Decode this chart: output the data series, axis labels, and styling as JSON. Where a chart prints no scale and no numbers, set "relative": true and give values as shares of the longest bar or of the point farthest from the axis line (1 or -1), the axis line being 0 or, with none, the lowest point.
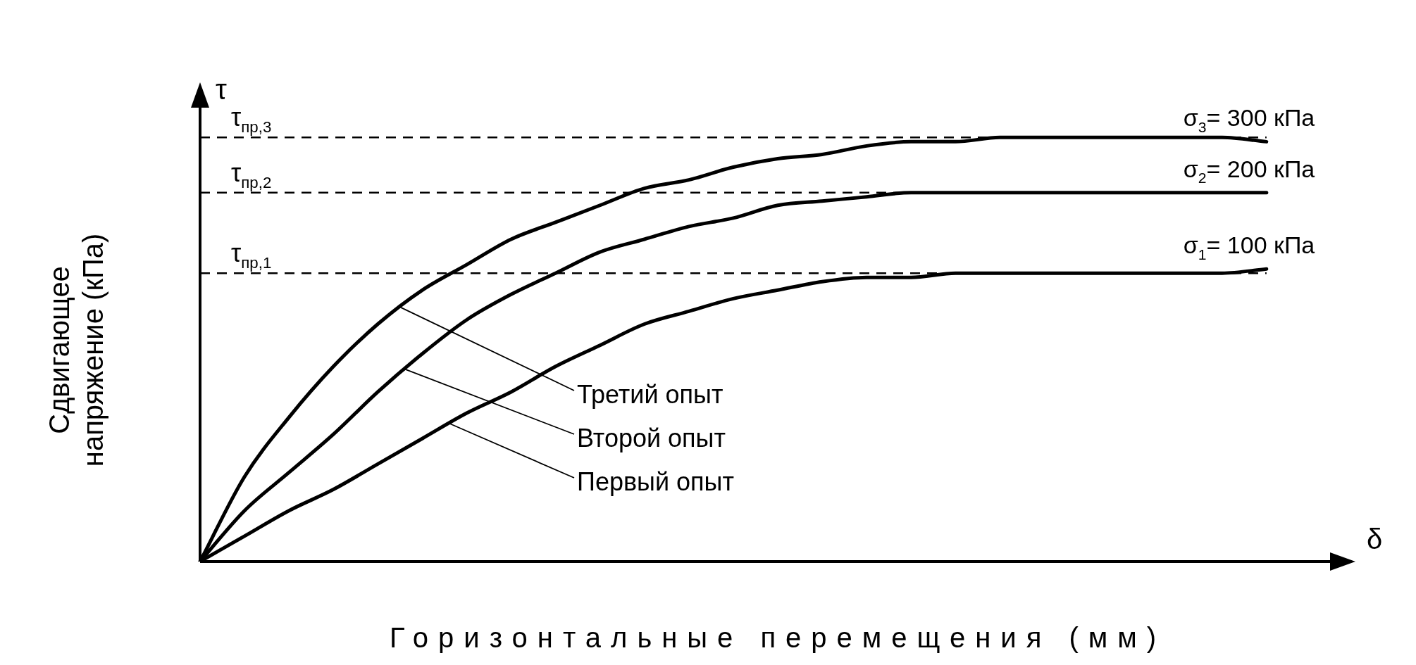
{
  "chart_data": {
    "type": "line",
    "relative": true,
    "xlabel": "Горизонтальные перемещения (мм)",
    "ylabel": "Сдвигающее напряжение (кПа)",
    "categories": [
      null,
      null,
      null,
      null,
      null,
      null,
      null,
      null,
      null,
      null,
      null,
      null,
      null,
      null,
      null,
      null,
      null,
      null,
      null,
      null,
      null,
      null,
      null,
      null,
      null,
      null,
      null
    ],
    "series": [
      {
        "name": "σ$_{3}$= 300 кПа",
        "color": "#000000",
        "values": [
          0,
          0.2,
          0.34,
          0.46,
          0.56,
          0.64,
          0.7,
          0.76,
          0.8,
          0.84,
          0.88,
          0.9,
          0.93,
          0.95,
          0.96,
          0.98,
          0.99,
          0.99,
          1,
          1,
          1,
          1,
          1,
          1,
          0.99,
          null,
          null
        ]
      },
      {
        "name": "σ$_{2}$= 200 кПа",
        "color": "#000000",
        "values": [
          0,
          0.12,
          0.21,
          0.3,
          0.4,
          0.49,
          0.57,
          0.63,
          0.68,
          0.73,
          0.76,
          0.79,
          0.81,
          0.84,
          0.85,
          0.86,
          0.87,
          0.87,
          0.87,
          0.87,
          0.87,
          0.87,
          0.87,
          0.87,
          0.87,
          null,
          null
        ]
      },
      {
        "name": "σ$_{1}$= 100 кПа",
        "color": "#000000",
        "values": [
          0,
          0.06,
          0.12,
          0.17,
          0.23,
          0.29,
          0.35,
          0.4,
          0.46,
          0.51,
          0.56,
          0.59,
          0.62,
          0.64,
          0.66,
          0.67,
          0.67,
          0.68,
          0.68,
          0.68,
          0.68,
          0.68,
          0.68,
          0.68,
          0.69,
          null,
          null
        ]
      }
    ],
    "ref_lines": [
      {
        "axis": "y",
        "value": 1,
        "label": "τ$_{пр,3}$",
        "color": "#000000",
        "line_style": "dashed"
      },
      {
        "axis": "y",
        "value": 0.87,
        "label": "τ$_{пр,2}$",
        "color": "#000000",
        "line_style": "dashed"
      },
      {
        "axis": "y",
        "value": 0.68,
        "label": "τ$_{пр,1}$",
        "color": "#000000",
        "line_style": "dashed"
      }
    ],
    "annotations": [
      "τ",
      "δ",
      "Третий опыт",
      "Второй опыт",
      "Первый опыт"
    ],
    "legend": false,
    "grid": false,
    "marker": "none",
    "line_style": "solid"
  }
}
